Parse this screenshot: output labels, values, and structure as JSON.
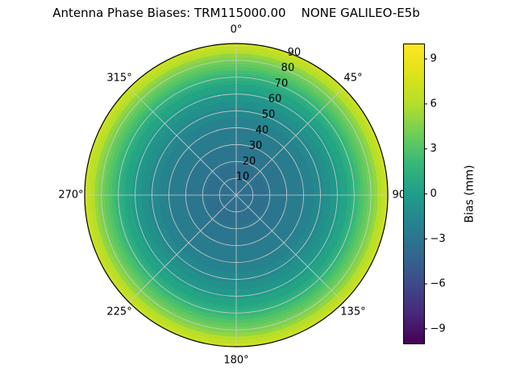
{
  "title": "Antenna Phase Biases: TRM115000.00    NONE GALILEO-E5b",
  "chart_data": {
    "type": "heatmap",
    "projection": "polar",
    "title": "Antenna Phase Biases: TRM115000.00    NONE GALILEO-E5b",
    "antenna": "TRM115000.00 NONE",
    "signal": "GALILEO-E5b",
    "theta_ticks_deg": [
      0,
      45,
      90,
      135,
      180,
      225,
      270,
      315
    ],
    "theta_tick_labels": [
      "0°",
      "45°",
      "90°",
      "135°",
      "180°",
      "225°",
      "270°",
      "315°"
    ],
    "radial_ticks": [
      10,
      20,
      30,
      40,
      50,
      60,
      70,
      80,
      90
    ],
    "radial_tick_labels": [
      "10",
      "20",
      "30",
      "40",
      "50",
      "60",
      "70",
      "80",
      "90"
    ],
    "radial_label_angle_deg": 22.5,
    "azimuth_dependence": "none (azimuthally symmetric rings)",
    "zenith": [
      0,
      5,
      10,
      15,
      20,
      25,
      30,
      35,
      40,
      45,
      50,
      55,
      60,
      65,
      70,
      75,
      80,
      85,
      90
    ],
    "bias_mm": [
      -3.6,
      -3.6,
      -3.5,
      -3.4,
      -3.2,
      -3.0,
      -2.8,
      -2.5,
      -2.2,
      -1.8,
      -1.4,
      -0.8,
      -0.2,
      0.6,
      1.6,
      2.8,
      4.2,
      5.8,
      7.5
    ],
    "bias_quantization_mm": 0.5,
    "grid": true,
    "grid_color": "#cccccc",
    "outline_color": "#000000",
    "colorbar": {
      "label": "Bias (mm)",
      "vmin": -10,
      "vmax": 10,
      "ticks": [
        9,
        6,
        3,
        0,
        -3,
        -6,
        -9
      ],
      "tick_labels": [
        "9",
        "6",
        "3",
        "0",
        "−3",
        "−6",
        "−9"
      ],
      "colormap": "viridis"
    },
    "colormap_stops": [
      {
        "t": 0.0,
        "color": "#440154"
      },
      {
        "t": 0.1,
        "color": "#482878"
      },
      {
        "t": 0.2,
        "color": "#3e4a89"
      },
      {
        "t": 0.3,
        "color": "#31688e"
      },
      {
        "t": 0.4,
        "color": "#26828e"
      },
      {
        "t": 0.5,
        "color": "#1f9e89"
      },
      {
        "t": 0.6,
        "color": "#35b779"
      },
      {
        "t": 0.7,
        "color": "#6ece58"
      },
      {
        "t": 0.8,
        "color": "#b5de2b"
      },
      {
        "t": 0.9,
        "color": "#dde318"
      },
      {
        "t": 1.0,
        "color": "#fde725"
      }
    ]
  }
}
